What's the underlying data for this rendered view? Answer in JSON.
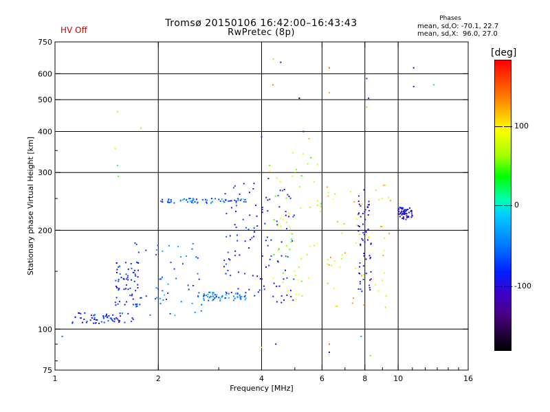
{
  "header": {
    "title_line1": "Tromsø 20150106 16:42:00–16:43:43",
    "title_line2": "RwPretec (8p)",
    "status": "HV Off",
    "phase_heading": "Phases",
    "phase_o": "mean, sd,O: -70.1, 22.7",
    "phase_x": "mean, sd,X:  96.0, 27.0"
  },
  "colorbar": {
    "unit": "[deg]",
    "ticks": [
      {
        "label": "100",
        "value": 100
      },
      {
        "label": "0",
        "value": 0
      },
      {
        "label": "-100",
        "value": -100
      }
    ],
    "range": [
      -180,
      180
    ]
  },
  "colors": {
    "phase_scale": [
      "#000000",
      "#4a0080",
      "#0020ff",
      "#0080ff",
      "#00d0ff",
      "#00ffb0",
      "#00ff00",
      "#a0ff00",
      "#ffff00",
      "#ff8000",
      "#ff0000"
    ],
    "status": "#cc0000"
  },
  "chart_data": {
    "type": "scatter",
    "title": "Tromsø 20150106 16:42:00–16:43:43",
    "subtitle": "RwPretec (8p)",
    "xlabel": "Frequency [MHz]",
    "ylabel": "Stationary phase Virtual Height [km]",
    "x_scale": "log",
    "y_scale": "log",
    "xlim": [
      1,
      16
    ],
    "ylim": [
      75,
      750
    ],
    "grid": true,
    "xticks": [
      1,
      2,
      4,
      6,
      8,
      10,
      16
    ],
    "yticks": [
      75,
      100,
      200,
      300,
      400,
      500,
      600,
      750
    ],
    "color_variable": "phase [deg]",
    "clusters": [
      {
        "x_range": [
          1.08,
          1.7
        ],
        "y_range": [
          104,
          112
        ],
        "phase_mean": -90
      },
      {
        "x_range": [
          1.5,
          1.75
        ],
        "y_range": [
          118,
          160
        ],
        "phase_mean": -100
      },
      {
        "x_range": [
          1.7,
          2.7
        ],
        "y_range": [
          110,
          185
        ],
        "phase_mean": -60
      },
      {
        "x_range": [
          2.0,
          3.6
        ],
        "y_range": [
          242,
          250
        ],
        "phase_mean": -60
      },
      {
        "x_range": [
          2.7,
          3.6
        ],
        "y_range": [
          122,
          130
        ],
        "phase_mean": -60
      },
      {
        "x_range": [
          3.1,
          4.0
        ],
        "y_range": [
          125,
          280
        ],
        "phase_mean": -100
      },
      {
        "x_range": [
          4.0,
          5.0
        ],
        "y_range": [
          120,
          300
        ],
        "phase_mean": -100
      },
      {
        "x_range": [
          4.2,
          6.0
        ],
        "y_range": [
          120,
          350
        ],
        "phase_mean": 60
      },
      {
        "x_range": [
          6.2,
          9.5
        ],
        "y_range": [
          115,
          280
        ],
        "phase_mean": 100
      },
      {
        "x_range": [
          7.6,
          8.4
        ],
        "y_range": [
          130,
          270
        ],
        "phase_mean": -110
      },
      {
        "x_range": [
          10.0,
          11.0
        ],
        "y_range": [
          215,
          235
        ],
        "phase_mean": -110
      }
    ],
    "scattered_points": [
      {
        "x": 1.05,
        "y": 95,
        "phase": -60
      },
      {
        "x": 1.52,
        "y": 460,
        "phase": 110
      },
      {
        "x": 1.78,
        "y": 410,
        "phase": 110
      },
      {
        "x": 1.5,
        "y": 355,
        "phase": 100
      },
      {
        "x": 1.52,
        "y": 315,
        "phase": 10
      },
      {
        "x": 1.53,
        "y": 292,
        "phase": 40
      },
      {
        "x": 4.33,
        "y": 665,
        "phase": 110
      },
      {
        "x": 4.55,
        "y": 650,
        "phase": -110
      },
      {
        "x": 4.32,
        "y": 555,
        "phase": 140
      },
      {
        "x": 5.15,
        "y": 505,
        "phase": -180
      },
      {
        "x": 6.3,
        "y": 625,
        "phase": 150
      },
      {
        "x": 6.3,
        "y": 525,
        "phase": 120
      },
      {
        "x": 8.1,
        "y": 580,
        "phase": -80
      },
      {
        "x": 8.2,
        "y": 505,
        "phase": -110
      },
      {
        "x": 8.1,
        "y": 475,
        "phase": 120
      },
      {
        "x": 11.1,
        "y": 625,
        "phase": -110
      },
      {
        "x": 11.1,
        "y": 548,
        "phase": -110
      },
      {
        "x": 12.7,
        "y": 555,
        "phase": -20
      },
      {
        "x": 4.0,
        "y": 385,
        "phase": -110
      },
      {
        "x": 5.3,
        "y": 400,
        "phase": -110
      },
      {
        "x": 5.5,
        "y": 380,
        "phase": 120
      },
      {
        "x": 4.4,
        "y": 90,
        "phase": -110
      },
      {
        "x": 6.3,
        "y": 90,
        "phase": 150
      },
      {
        "x": 6.3,
        "y": 85,
        "phase": -110
      },
      {
        "x": 7.8,
        "y": 95,
        "phase": -40
      },
      {
        "x": 8.3,
        "y": 83,
        "phase": 40
      },
      {
        "x": 4.0,
        "y": 88,
        "phase": 100
      }
    ]
  }
}
